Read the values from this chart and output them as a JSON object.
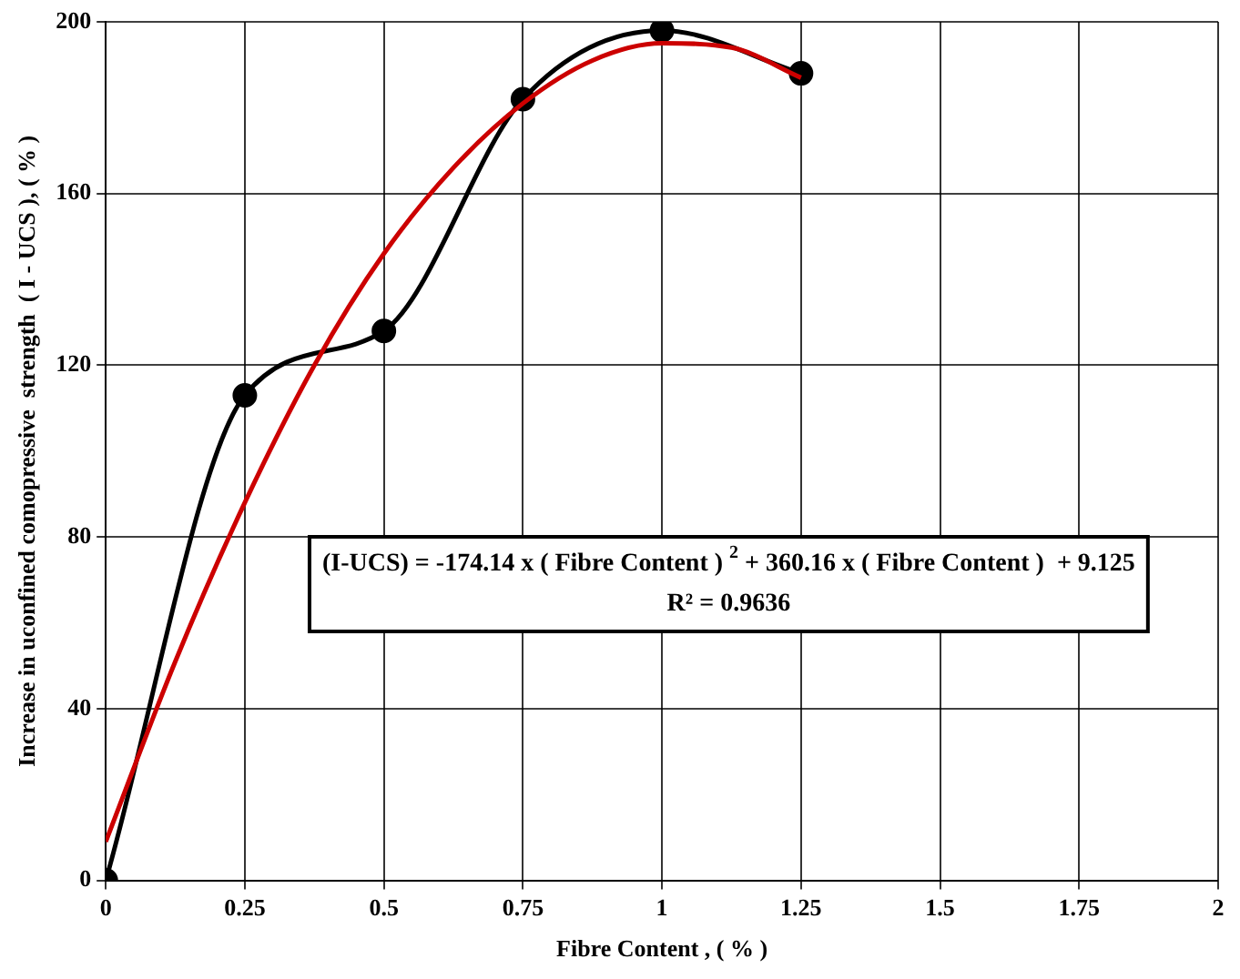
{
  "chart_data": {
    "type": "line",
    "xlabel": "Fibre Content , ( % )",
    "ylabel": "Increase in uconfined comopressive  strength  ( I - UCS ), ( % )",
    "x": [
      0,
      0.25,
      0.5,
      0.75,
      1,
      1.25
    ],
    "series": [
      {
        "color": "#000000",
        "values": [
          0,
          113,
          128,
          182,
          198,
          188
        ],
        "marker": "circle"
      },
      {
        "type": "line",
        "color": "#cc0000",
        "x": [
          0,
          0.125,
          0.25,
          0.375,
          0.5,
          0.625,
          0.75,
          0.875,
          1,
          1.125,
          1.25
        ],
        "values": [
          9,
          51,
          88,
          120,
          146,
          166,
          181,
          191,
          195,
          194,
          187
        ],
        "marker": "none"
      }
    ],
    "xlim": [
      0,
      2
    ],
    "xticks": [
      0,
      0.25,
      0.5,
      0.75,
      1,
      1.25,
      1.5,
      1.75,
      2
    ],
    "ylim": [
      0,
      200
    ],
    "yticks": [
      0,
      40,
      80,
      120,
      160,
      200
    ],
    "grid": true,
    "legend": false,
    "annotations": [
      "(I-UCS) = -174.14 x ( Fibre Content ) $^{2}$ + 360.16 x ( Fibre Content )  + 9.125",
      "R² = 0.9636"
    ]
  }
}
